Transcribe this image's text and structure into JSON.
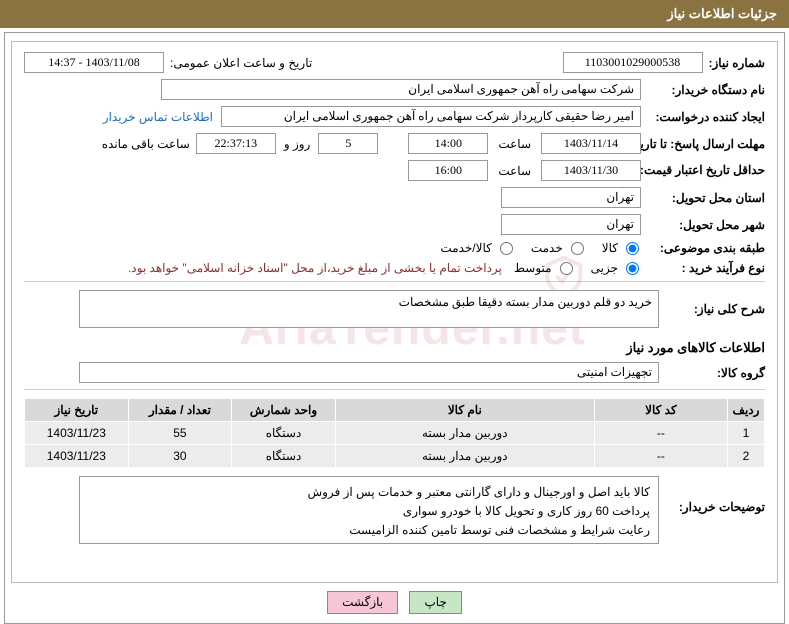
{
  "header_title": "جزئیات اطلاعات نیاز",
  "need_number_label": "شماره نیاز:",
  "need_number": "1103001029000538",
  "announce_label": "تاریخ و ساعت اعلان عمومی:",
  "announce_value": "1403/11/08 - 14:37",
  "buyer_label": "نام دستگاه خریدار:",
  "buyer_value": "شرکت سهامی راه آهن جمهوری اسلامی ایران",
  "requester_label": "ایجاد کننده درخواست:",
  "requester_value": "امیر رضا  حقیقی کارپرداز شرکت سهامی راه آهن جمهوری اسلامی ایران",
  "contact_link": "اطلاعات تماس خریدار",
  "deadline_label": "مهلت ارسال پاسخ: تا تاریخ:",
  "deadline_date": "1403/11/14",
  "time_label": "ساعت",
  "deadline_time": "14:00",
  "remaining_days": "5",
  "remaining_days_label": "روز و",
  "remaining_time": "22:37:13",
  "remaining_suffix": "ساعت باقی مانده",
  "validity_label": "حداقل تاریخ اعتبار قیمت: تا تاریخ:",
  "validity_date": "1403/11/30",
  "validity_time": "16:00",
  "province_label": "استان محل تحویل:",
  "province_value": "تهران",
  "city_label": "شهر محل تحویل:",
  "city_value": "تهران",
  "category_label": "طبقه بندی موضوعی:",
  "category_options": {
    "goods": "کالا",
    "service": "خدمت",
    "both": "کالا/خدمت"
  },
  "process_label": "نوع فرآیند خرید :",
  "process_options": {
    "partial": "جزیی",
    "medium": "متوسط"
  },
  "process_note": "پرداخت تمام یا بخشی از مبلغ خرید،از محل \"اسناد خزانه اسلامی\" خواهد بود.",
  "desc_label": "شرح کلی نیاز:",
  "desc_value": "خرید دو قلم دوربین مدار بسته دقیقا طبق مشخصات",
  "items_title": "اطلاعات کالاهای مورد نیاز",
  "group_label": "گروه کالا:",
  "group_value": "تجهیزات امنیتی",
  "table": {
    "columns": [
      "ردیف",
      "کد کالا",
      "نام کالا",
      "واحد شمارش",
      "تعداد / مقدار",
      "تاریخ نیاز"
    ],
    "col_widths": [
      "5%",
      "18%",
      "35%",
      "14%",
      "14%",
      "14%"
    ],
    "rows": [
      [
        "1",
        "--",
        "دوربین مدار بسته",
        "دستگاه",
        "55",
        "1403/11/23"
      ],
      [
        "2",
        "--",
        "دوربین مدار بسته",
        "دستگاه",
        "30",
        "1403/11/23"
      ]
    ]
  },
  "buyer_notes_label": "توضیحات خریدار:",
  "buyer_notes_lines": [
    "کالا باید اصل و اورجینال و دارای گارانتی معتبر و خدمات پس از فروش",
    "پرداخت 60 روز کاری و تحویل کالا با خودرو سواری",
    "رعایت شرایط و مشخصات فنی توسط تامین کننده الزامیست"
  ],
  "btn_print": "چاپ",
  "btn_back": "بازگشت",
  "watermark_text": "AriaTender.net",
  "colors": {
    "header_bg": "#8a7341",
    "link": "#1a6fc4",
    "note": "#8a2f2f",
    "th_bg": "#d9d9d9",
    "td_bg": "#ececec",
    "btn_green": "#c6e6c6",
    "btn_pink": "#f6c6d6"
  }
}
